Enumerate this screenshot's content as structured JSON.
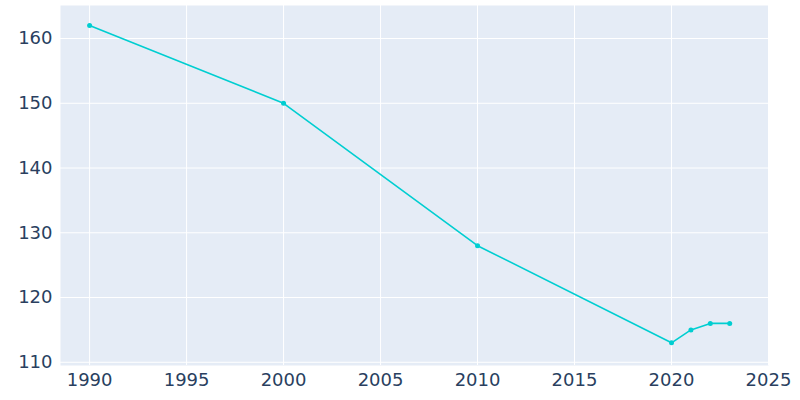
{
  "chart_data": {
    "type": "line",
    "x": [
      1990,
      2000,
      2010,
      2020,
      2021,
      2022,
      2023
    ],
    "values": [
      162,
      150,
      128,
      113,
      115,
      116,
      116
    ],
    "color": "#00ced1",
    "marker": "circle",
    "xlim": [
      1988.5,
      2025
    ],
    "xticks": [
      1990,
      1995,
      2000,
      2005,
      2010,
      2015,
      2020,
      2025
    ],
    "ylim": [
      109.5,
      165.1
    ],
    "yticks": [
      110,
      120,
      130,
      140,
      150,
      160
    ],
    "grid": true
  }
}
